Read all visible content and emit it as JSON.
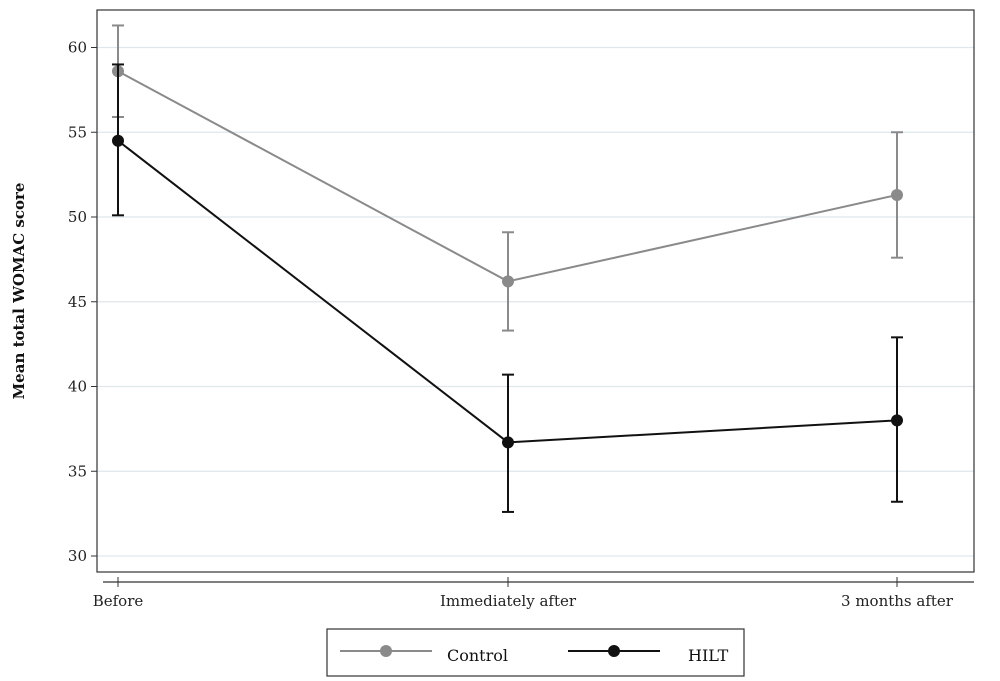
{
  "chart_data": {
    "type": "line",
    "xlabel": "",
    "ylabel": "Mean total WOMAC score",
    "categories": [
      "Before",
      "Immediately after",
      "3 months after"
    ],
    "ylim": [
      30,
      62
    ],
    "yticks": [
      30,
      35,
      40,
      45,
      50,
      55,
      60
    ],
    "grid": true,
    "legend_position": "bottom",
    "series": [
      {
        "name": "Control",
        "color": "#8a8a8a",
        "values": [
          58.6,
          46.2,
          51.3
        ],
        "err_low": [
          55.9,
          43.3,
          47.6
        ],
        "err_high": [
          61.3,
          49.1,
          55.0
        ]
      },
      {
        "name": "HILT",
        "color": "#111111",
        "values": [
          54.5,
          36.7,
          38.0
        ],
        "err_low": [
          50.1,
          32.6,
          33.2
        ],
        "err_high": [
          59.0,
          40.7,
          42.9
        ]
      }
    ]
  }
}
